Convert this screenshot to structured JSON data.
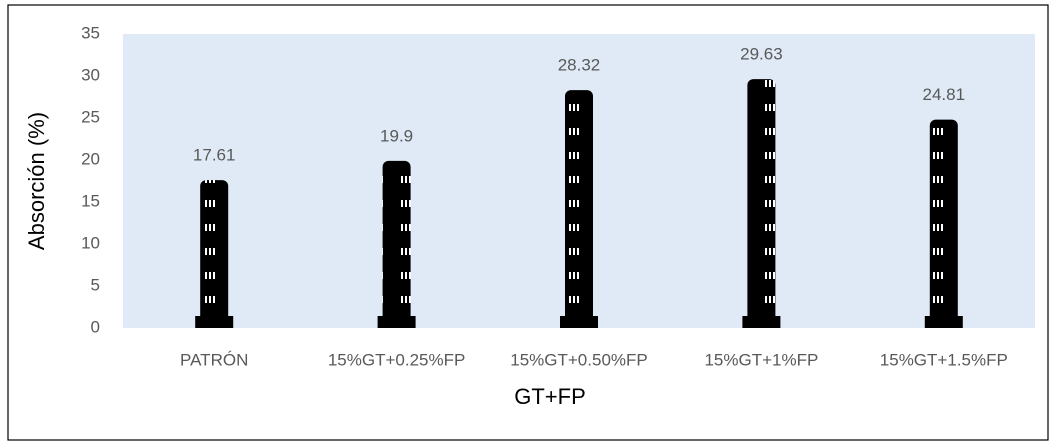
{
  "chart_data": {
    "type": "bar",
    "x_label": "GT+FP",
    "y_label": "Absorción (%)",
    "categories": [
      "PATRÓN",
      "15%GT+0.25%FP",
      "15%GT+0.50%FP",
      "15%GT+1%FP",
      "15%GT+1.5%FP"
    ],
    "values": [
      17.61,
      19.9,
      28.32,
      29.63,
      24.81
    ],
    "color": "#000000",
    "ylim": [
      0,
      35
    ],
    "yticks": [
      0,
      5,
      10,
      15,
      20,
      25,
      30,
      35
    ],
    "grid": false
  }
}
